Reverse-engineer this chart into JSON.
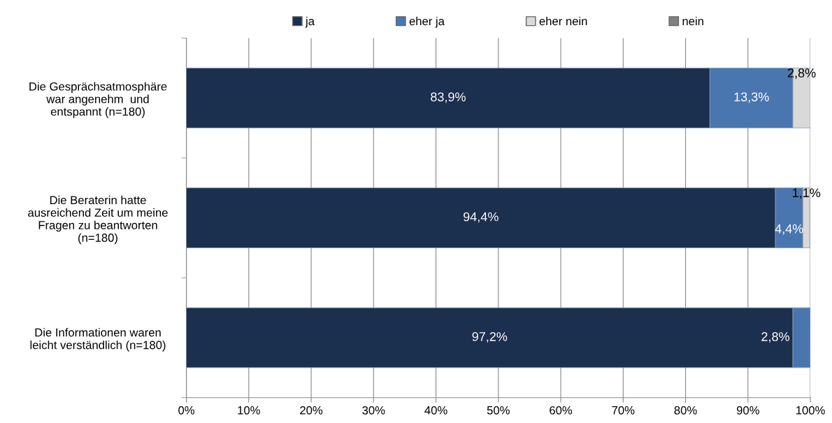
{
  "chart_data": {
    "type": "bar",
    "orientation": "horizontal",
    "stacked": true,
    "categories": [
      "Die Gesprächsatmosphäre\nwar angenehm  und\nentspannt (n=180)",
      "Die Beraterin hatte\nausreichend Zeit um meine\nFragen zu beantworten\n(n=180)",
      "Die Informationen waren\nleicht verständlich (n=180)"
    ],
    "series": [
      {
        "name": "ja",
        "color": "#1b2f4e",
        "values": [
          83.9,
          94.4,
          97.2
        ],
        "value_labels": [
          "83,9%",
          "94,4%",
          "97,2%"
        ]
      },
      {
        "name": "eher ja",
        "color": "#4a76b0",
        "values": [
          13.3,
          4.4,
          2.8
        ],
        "value_labels": [
          "13,3%",
          "4,4%",
          "2,8%"
        ]
      },
      {
        "name": "eher nein",
        "color": "#d9d9d9",
        "values": [
          2.8,
          1.1,
          null
        ],
        "value_labels": [
          "2,8%",
          "1,1%",
          null
        ]
      },
      {
        "name": "nein",
        "color": "#808080",
        "values": [
          null,
          null,
          null
        ]
      }
    ],
    "xlim": [
      0,
      100
    ],
    "xticks": [
      {
        "value": 0,
        "label": "0%"
      },
      {
        "value": 10,
        "label": "10%"
      },
      {
        "value": 20,
        "label": "20%"
      },
      {
        "value": 30,
        "label": "30%"
      },
      {
        "value": 40,
        "label": "40%"
      },
      {
        "value": 50,
        "label": "50%"
      },
      {
        "value": 60,
        "label": "60%"
      },
      {
        "value": 70,
        "label": "70%"
      },
      {
        "value": 80,
        "label": "80%"
      },
      {
        "value": 90,
        "label": "90%"
      },
      {
        "value": 100,
        "label": "100%"
      }
    ],
    "grid": "x",
    "legend": "top"
  }
}
